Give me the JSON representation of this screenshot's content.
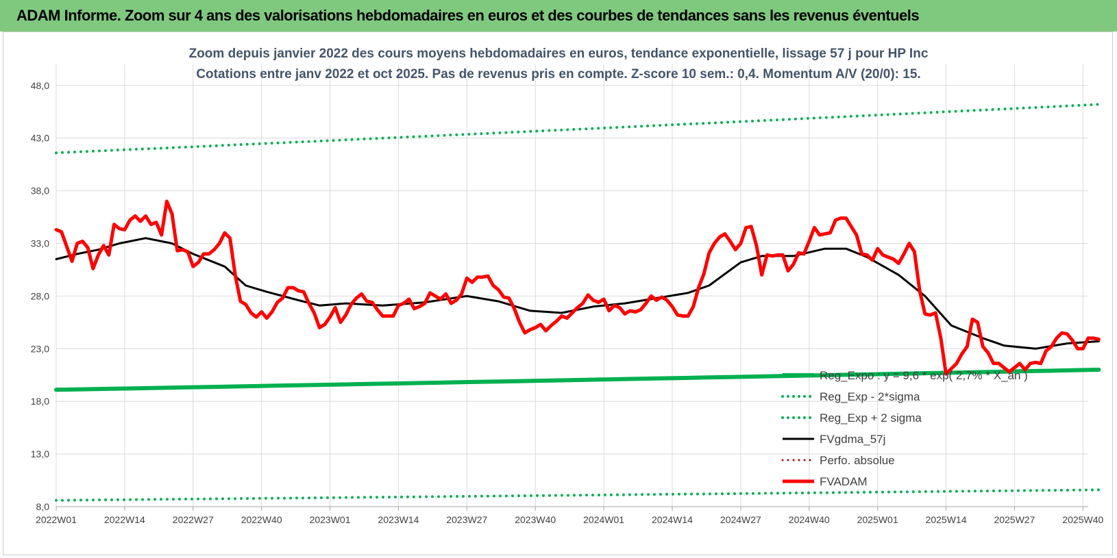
{
  "banner": {
    "title": "ADAM Informe. Zoom sur 4 ans des valorisations hebdomadaires en euros et des courbes de tendances sans les revenus éventuels"
  },
  "chart_data": {
    "type": "line",
    "title_lines": [
      "Zoom depuis janvier 2022 des cours moyens hebdomadaires en euros, tendance exponentielle, lissage 57 j pour HP Inc",
      "Cotations entre janv 2022 et oct 2025. Pas de revenus pris en compte. Z-score 10 sem.: 0,4. Momentum A/V (20/0): 15."
    ],
    "ylim": [
      8,
      50
    ],
    "yticks": [
      8,
      13,
      18,
      23,
      28,
      33,
      38,
      43,
      48
    ],
    "ytick_labels": [
      "8,0",
      "13,0",
      "18,0",
      "23,0",
      "28,0",
      "33,0",
      "38,0",
      "43,0",
      "48,0"
    ],
    "x_range": [
      0,
      196
    ],
    "xticks": [
      0,
      13,
      26,
      39,
      52,
      65,
      78,
      91,
      104,
      117,
      130,
      143,
      156,
      169,
      182,
      195
    ],
    "xtick_labels": [
      "2022W01",
      "2022W14",
      "2022W27",
      "2022W40",
      "2023W01",
      "2023W14",
      "2023W27",
      "2023W40",
      "2024W01",
      "2024W14",
      "2024W27",
      "2024W40",
      "2025W01",
      "2025W14",
      "2025W27",
      "2025W40"
    ],
    "x_end": 198,
    "series": [
      {
        "name": "Reg_Expo : y = 9,6 * exp( 2,7% * X_an )",
        "style": "solid",
        "color": "#00b050",
        "width": 6,
        "start": 19.1,
        "end": 21.0
      },
      {
        "name": "Reg_Exp - 2*sigma",
        "style": "dotted",
        "color": "#00b050",
        "width": 4,
        "start": 8.6,
        "end": 9.6
      },
      {
        "name": "Reg_Exp + 2 sigma",
        "style": "dotted",
        "color": "#00b050",
        "width": 4,
        "start": 41.6,
        "end": 46.2
      },
      {
        "name": "FVgdma_57j",
        "style": "solid",
        "color": "#000000",
        "width": 3,
        "points": [
          [
            0,
            31.5
          ],
          [
            4,
            32.0
          ],
          [
            8,
            32.4
          ],
          [
            12,
            33.0
          ],
          [
            17,
            33.5
          ],
          [
            22,
            33.0
          ],
          [
            26,
            32.0
          ],
          [
            32,
            30.8
          ],
          [
            36,
            29.0
          ],
          [
            40,
            28.4
          ],
          [
            46,
            27.6
          ],
          [
            50,
            27.1
          ],
          [
            55,
            27.3
          ],
          [
            62,
            27.1
          ],
          [
            70,
            27.4
          ],
          [
            78,
            28.0
          ],
          [
            84,
            27.5
          ],
          [
            90,
            26.6
          ],
          [
            96,
            26.4
          ],
          [
            102,
            27.0
          ],
          [
            108,
            27.3
          ],
          [
            114,
            27.8
          ],
          [
            120,
            28.3
          ],
          [
            124,
            29.0
          ],
          [
            130,
            31.2
          ],
          [
            134,
            31.8
          ],
          [
            140,
            31.8
          ],
          [
            146,
            32.5
          ],
          [
            150,
            32.5
          ],
          [
            154,
            31.7
          ],
          [
            160,
            30.0
          ],
          [
            165,
            28.0
          ],
          [
            170,
            25.2
          ],
          [
            176,
            24.0
          ],
          [
            180,
            23.3
          ],
          [
            186,
            23.0
          ],
          [
            192,
            23.5
          ],
          [
            198,
            23.7
          ]
        ]
      },
      {
        "name": "Perfo. absolue",
        "style": "dotted",
        "color": "#c00000",
        "width": 3
      },
      {
        "name": "FVADAM",
        "style": "solid",
        "color": "#ff0000",
        "width": 5,
        "points": [
          [
            0,
            34.3
          ],
          [
            1,
            34.1
          ],
          [
            3,
            31.3
          ],
          [
            4,
            33.0
          ],
          [
            5,
            33.2
          ],
          [
            6,
            32.6
          ],
          [
            7,
            30.6
          ],
          [
            8,
            31.9
          ],
          [
            9,
            32.8
          ],
          [
            10,
            31.9
          ],
          [
            11,
            34.8
          ],
          [
            12,
            34.4
          ],
          [
            13,
            34.3
          ],
          [
            14,
            35.2
          ],
          [
            15,
            35.6
          ],
          [
            16,
            35.1
          ],
          [
            17,
            35.6
          ],
          [
            18,
            34.8
          ],
          [
            19,
            35.0
          ],
          [
            20,
            33.8
          ],
          [
            21,
            37.0
          ],
          [
            22,
            35.8
          ],
          [
            23,
            32.3
          ],
          [
            24,
            32.4
          ],
          [
            25,
            32.2
          ],
          [
            26,
            30.8
          ],
          [
            27,
            31.2
          ],
          [
            28,
            32.0
          ],
          [
            29,
            32.0
          ],
          [
            30,
            32.4
          ],
          [
            31,
            33.0
          ],
          [
            32,
            34.0
          ],
          [
            33,
            33.5
          ],
          [
            34,
            30.0
          ],
          [
            35,
            27.5
          ],
          [
            36,
            27.2
          ],
          [
            37,
            26.4
          ],
          [
            38,
            26.0
          ],
          [
            39,
            26.5
          ],
          [
            40,
            25.9
          ],
          [
            41,
            26.5
          ],
          [
            42,
            27.4
          ],
          [
            43,
            27.8
          ],
          [
            44,
            28.8
          ],
          [
            45,
            28.8
          ],
          [
            46,
            28.5
          ],
          [
            47,
            28.4
          ],
          [
            48,
            27.3
          ],
          [
            49,
            26.4
          ],
          [
            50,
            25.0
          ],
          [
            51,
            25.3
          ],
          [
            52,
            26.0
          ],
          [
            53,
            26.9
          ],
          [
            54,
            25.5
          ],
          [
            55,
            26.2
          ],
          [
            56,
            27.2
          ],
          [
            57,
            27.8
          ],
          [
            58,
            28.2
          ],
          [
            59,
            27.5
          ],
          [
            60,
            27.4
          ],
          [
            61,
            26.7
          ],
          [
            62,
            26.1
          ],
          [
            63,
            26.1
          ],
          [
            64,
            26.1
          ],
          [
            65,
            27.1
          ],
          [
            66,
            27.3
          ],
          [
            67,
            27.7
          ],
          [
            68,
            26.8
          ],
          [
            69,
            27.0
          ],
          [
            70,
            27.3
          ],
          [
            71,
            28.3
          ],
          [
            72,
            28.0
          ],
          [
            73,
            27.7
          ],
          [
            74,
            28.2
          ],
          [
            75,
            27.3
          ],
          [
            76,
            27.6
          ],
          [
            77,
            28.2
          ],
          [
            78,
            29.7
          ],
          [
            79,
            29.3
          ],
          [
            80,
            29.8
          ],
          [
            81,
            29.8
          ],
          [
            82,
            29.9
          ],
          [
            83,
            29.0
          ],
          [
            84,
            28.6
          ],
          [
            85,
            27.9
          ],
          [
            86,
            27.8
          ],
          [
            87,
            26.8
          ],
          [
            88,
            25.5
          ],
          [
            89,
            24.5
          ],
          [
            90,
            24.8
          ],
          [
            91,
            25.0
          ],
          [
            92,
            25.3
          ],
          [
            93,
            24.7
          ],
          [
            94,
            25.2
          ],
          [
            95,
            25.6
          ],
          [
            96,
            26.1
          ],
          [
            97,
            25.9
          ],
          [
            98,
            26.4
          ],
          [
            99,
            26.9
          ],
          [
            100,
            27.3
          ],
          [
            101,
            28.1
          ],
          [
            102,
            27.6
          ],
          [
            103,
            27.4
          ],
          [
            104,
            27.7
          ],
          [
            105,
            26.6
          ],
          [
            106,
            27.1
          ],
          [
            107,
            26.9
          ],
          [
            108,
            26.3
          ],
          [
            109,
            26.6
          ],
          [
            110,
            26.5
          ],
          [
            111,
            26.7
          ],
          [
            112,
            27.3
          ],
          [
            113,
            28.0
          ],
          [
            114,
            27.6
          ],
          [
            115,
            27.9
          ],
          [
            116,
            27.6
          ],
          [
            117,
            27.0
          ],
          [
            118,
            26.2
          ],
          [
            119,
            26.1
          ],
          [
            120,
            26.1
          ],
          [
            121,
            27.0
          ],
          [
            122,
            28.8
          ],
          [
            123,
            30.1
          ],
          [
            124,
            32.1
          ],
          [
            125,
            33.0
          ],
          [
            126,
            33.6
          ],
          [
            127,
            33.9
          ],
          [
            128,
            33.2
          ],
          [
            129,
            32.4
          ],
          [
            130,
            33.0
          ],
          [
            131,
            34.5
          ],
          [
            132,
            34.6
          ],
          [
            133,
            32.8
          ],
          [
            134,
            30.0
          ],
          [
            135,
            31.9
          ],
          [
            136,
            31.8
          ],
          [
            137,
            31.9
          ],
          [
            138,
            31.9
          ],
          [
            139,
            30.4
          ],
          [
            140,
            31.0
          ],
          [
            141,
            32.1
          ],
          [
            142,
            32.0
          ],
          [
            143,
            33.2
          ],
          [
            144,
            34.5
          ],
          [
            145,
            33.8
          ],
          [
            146,
            33.9
          ],
          [
            147,
            34.0
          ],
          [
            148,
            35.2
          ],
          [
            149,
            35.4
          ],
          [
            150,
            35.4
          ],
          [
            151,
            34.6
          ],
          [
            152,
            33.8
          ],
          [
            153,
            32.0
          ],
          [
            154,
            31.9
          ],
          [
            155,
            31.4
          ],
          [
            156,
            32.5
          ],
          [
            157,
            31.9
          ],
          [
            158,
            31.7
          ],
          [
            159,
            31.5
          ],
          [
            160,
            31.1
          ],
          [
            161,
            32.0
          ],
          [
            162,
            33.0
          ],
          [
            163,
            32.2
          ],
          [
            164,
            28.5
          ],
          [
            165,
            26.3
          ],
          [
            166,
            26.2
          ],
          [
            167,
            26.4
          ],
          [
            168,
            24.0
          ],
          [
            169,
            20.6
          ],
          [
            170,
            21.1
          ],
          [
            171,
            21.6
          ],
          [
            172,
            22.5
          ],
          [
            173,
            23.2
          ],
          [
            174,
            25.8
          ],
          [
            175,
            25.5
          ],
          [
            176,
            23.2
          ],
          [
            177,
            22.6
          ],
          [
            178,
            21.6
          ],
          [
            179,
            21.6
          ],
          [
            180,
            21.2
          ],
          [
            181,
            20.8
          ],
          [
            182,
            21.2
          ],
          [
            183,
            21.6
          ],
          [
            184,
            21.0
          ],
          [
            185,
            21.6
          ],
          [
            186,
            21.7
          ],
          [
            187,
            21.6
          ],
          [
            188,
            22.8
          ],
          [
            189,
            23.2
          ],
          [
            190,
            24.0
          ],
          [
            191,
            24.5
          ],
          [
            192,
            24.4
          ],
          [
            193,
            23.8
          ],
          [
            194,
            23.0
          ],
          [
            195,
            23.0
          ],
          [
            196,
            24.0
          ],
          [
            197,
            24.0
          ],
          [
            198,
            23.9
          ]
        ]
      }
    ],
    "legend_position": "right-middle"
  }
}
